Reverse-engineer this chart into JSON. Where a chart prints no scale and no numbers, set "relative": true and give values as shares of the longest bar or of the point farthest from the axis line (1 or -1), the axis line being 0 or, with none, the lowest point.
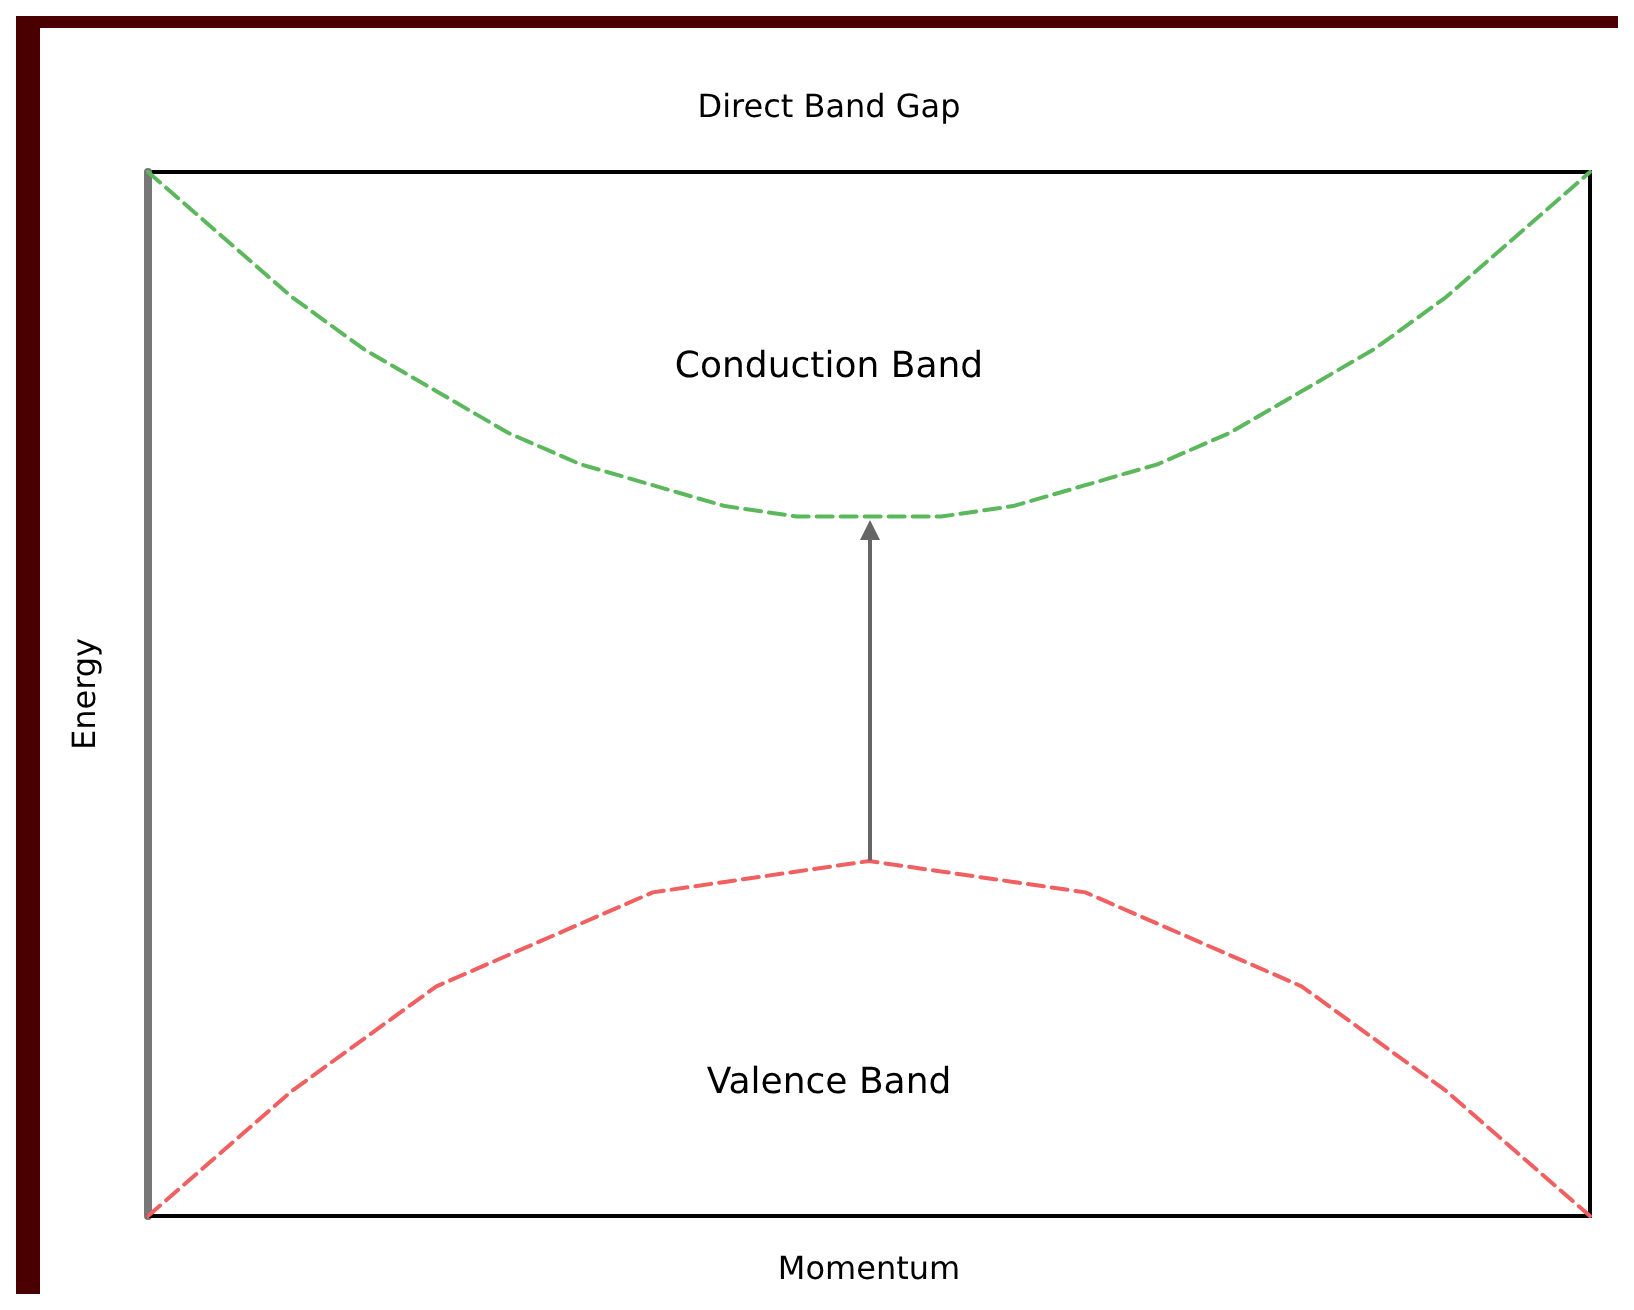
{
  "chart_data": {
    "type": "line",
    "title": "Direct Band Gap",
    "xlabel": "Momentum",
    "ylabel": "Energy",
    "relative": true,
    "grid": false,
    "marker": "none",
    "line_style": "dashed",
    "categories": [
      null,
      null,
      null,
      null,
      null,
      null,
      null,
      null,
      null,
      null,
      null,
      null,
      null,
      null,
      null,
      null,
      null,
      null,
      null,
      null,
      null
    ],
    "series": [
      {
        "color": "#5cb85c",
        "values": [
          1,
          0.94,
          0.88,
          0.83,
          0.79,
          0.75,
          0.72,
          0.7,
          0.68,
          0.67,
          0.67,
          0.67,
          0.68,
          0.7,
          0.72,
          0.75,
          0.79,
          0.83,
          0.88,
          0.94,
          1
        ]
      },
      {
        "color": "#f06060",
        "values": [
          0,
          0.06,
          0.12,
          0.17,
          0.22,
          0.25,
          0.28,
          0.31,
          0.32,
          0.33,
          0.34,
          0.33,
          0.32,
          0.31,
          0.28,
          0.25,
          0.22,
          0.17,
          0.12,
          0.06,
          0
        ]
      }
    ],
    "annotations": [
      "Conduction Band",
      "Valence Band"
    ]
  }
}
